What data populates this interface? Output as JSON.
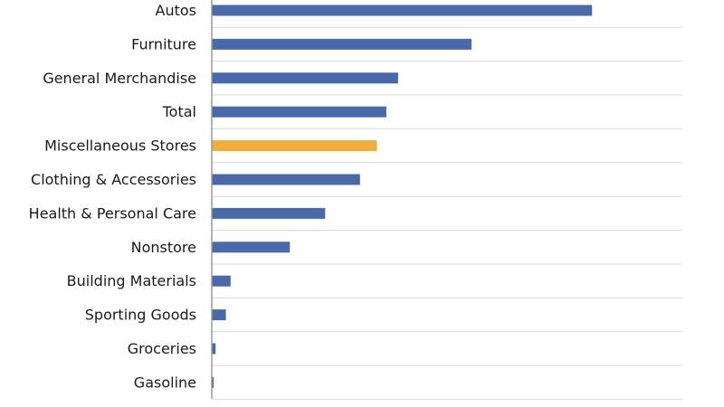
{
  "chart_data": {
    "type": "bar",
    "orientation": "horizontal",
    "title": "",
    "xlabel": "",
    "ylabel": "",
    "categories": [
      "Autos",
      "Furniture",
      "General Merchandise",
      "Total",
      "Miscellaneous Stores",
      "Clothing & Accessories",
      "Health & Personal Care",
      "Nonstore",
      "Building Materials",
      "Sporting Goods",
      "Groceries",
      "Gasoline"
    ],
    "series": [
      {
        "values": [
          80.8,
          55.2,
          39.6,
          37.1,
          35.1,
          31.5,
          24.1,
          16.6,
          4.0,
          3.0,
          0.8,
          0.4
        ]
      }
    ],
    "highlight_category": "Miscellaneous Stores",
    "colors": {
      "bar": "#4a69a8",
      "highlight": "#efad3e",
      "grid": "#d9d9d9",
      "axis": "#9a9a9a",
      "label": "#1a1a1a"
    },
    "xlim": [
      0,
      100
    ],
    "x_tick_labels_visible": false,
    "grid": true,
    "legend": "none"
  }
}
